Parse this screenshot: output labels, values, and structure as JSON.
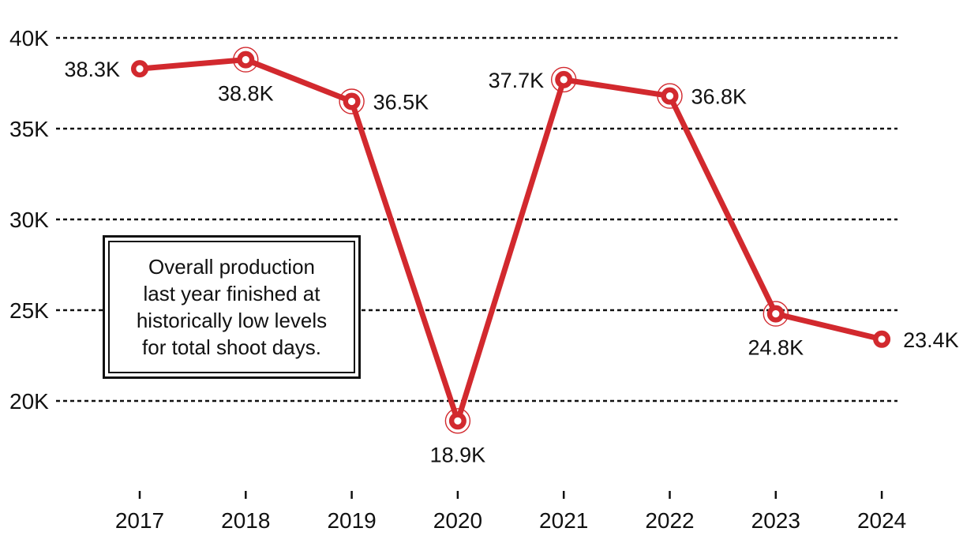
{
  "chart_data": {
    "type": "line",
    "categories": [
      "2017",
      "2018",
      "2019",
      "2020",
      "2021",
      "2022",
      "2023",
      "2024"
    ],
    "values": [
      38300,
      38800,
      36500,
      18900,
      37700,
      36800,
      24800,
      23400
    ],
    "point_labels": [
      "38.3K",
      "38.8K",
      "36.5K",
      "18.9K",
      "37.7K",
      "36.8K",
      "24.8K",
      "23.4K"
    ],
    "label_sides": [
      "left",
      "below",
      "right",
      "below",
      "left",
      "right",
      "below",
      "right"
    ],
    "point_halo": [
      false,
      true,
      true,
      true,
      true,
      true,
      true,
      false
    ],
    "y_ticks": [
      {
        "value": 40000,
        "label": "40K"
      },
      {
        "value": 35000,
        "label": "35K"
      },
      {
        "value": 30000,
        "label": "30K"
      },
      {
        "value": 25000,
        "label": "25K"
      },
      {
        "value": 20000,
        "label": "20K"
      }
    ],
    "ylim": [
      18000,
      41000
    ],
    "grid": "dashed-horizontal",
    "legend": "none",
    "colors": {
      "line": "#d2292e",
      "point_label": "#d2292e",
      "axis_text": "#111111",
      "grid": "#111111",
      "marker_fill": "#ffffff"
    },
    "annotation": {
      "lines": [
        "Overall production",
        "last year finished at",
        "historically low levels",
        "for total shoot days."
      ]
    }
  }
}
